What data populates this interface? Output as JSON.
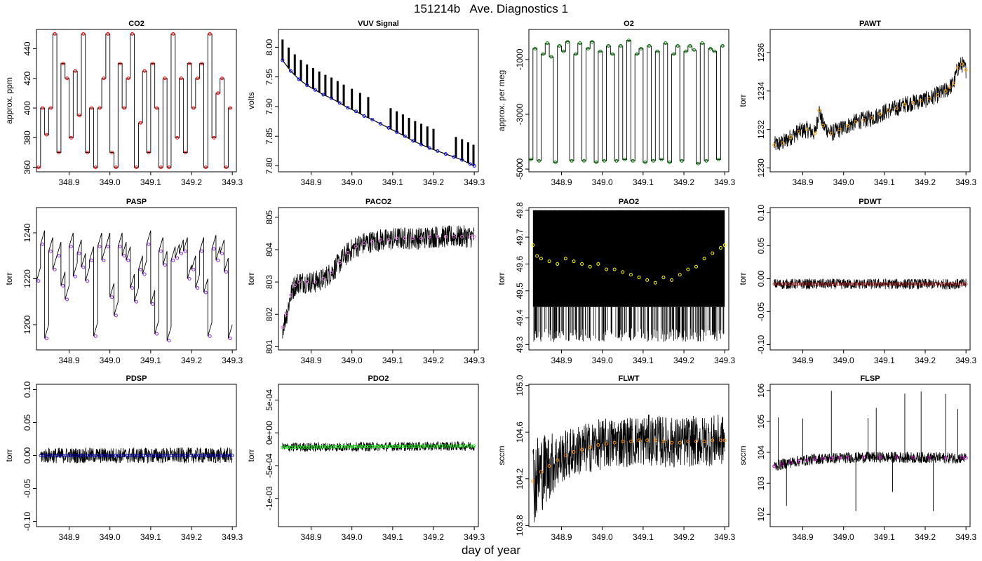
{
  "figure": {
    "title": "151214b   Ave. Diagnostics 1",
    "xlabel": "day of year"
  },
  "chart_data": [
    {
      "type": "line",
      "title": "CO2",
      "ylabel": "approx. ppm",
      "xlim": [
        348.82,
        349.31
      ],
      "ylim": [
        357,
        453
      ],
      "xticks": [
        "348.9",
        "349.0",
        "349.1",
        "349.2",
        "349.3"
      ],
      "yticks": [
        "360",
        "380",
        "400",
        "420",
        "440"
      ],
      "series": [
        {
          "color": "#ff0000",
          "raw": "#000000",
          "x": [
            348.825,
            348.835,
            348.845,
            348.855,
            348.865,
            348.875,
            348.885,
            348.895,
            348.905,
            348.915,
            348.925,
            348.935,
            348.945,
            348.955,
            348.965,
            348.975,
            348.985,
            348.995,
            349.005,
            349.015,
            349.025,
            349.035,
            349.045,
            349.055,
            349.065,
            349.075,
            349.085,
            349.095,
            349.105,
            349.115,
            349.125,
            349.135,
            349.145,
            349.155,
            349.165,
            349.175,
            349.185,
            349.195,
            349.205,
            349.215,
            349.225,
            349.235,
            349.245,
            349.255,
            349.265,
            349.275,
            349.285,
            349.295
          ],
          "y": [
            360,
            400,
            382,
            400,
            450,
            370,
            430,
            420,
            380,
            425,
            395,
            450,
            370,
            400,
            360,
            400,
            420,
            450,
            370,
            360,
            430,
            400,
            420,
            450,
            360,
            390,
            425,
            370,
            430,
            400,
            360,
            420,
            360,
            450,
            380,
            420,
            370,
            430,
            400,
            420,
            430,
            360,
            450,
            380,
            410,
            420,
            360,
            400
          ]
        }
      ]
    },
    {
      "type": "line",
      "title": "VUV Signal",
      "ylabel": "volts",
      "xlim": [
        348.82,
        349.31
      ],
      "ylim": [
        7.79,
        8.03
      ],
      "xticks": [
        "348.9",
        "349.0",
        "349.1",
        "349.2",
        "349.3"
      ],
      "yticks": [
        "7.80",
        "7.85",
        "7.90",
        "7.95",
        "8.00"
      ],
      "series": [
        {
          "color": "#0000ff",
          "raw": "#000000",
          "x": [
            348.83,
            348.85,
            348.87,
            348.89,
            348.91,
            348.93,
            348.95,
            348.97,
            348.99,
            349.01,
            349.03,
            349.05,
            349.07,
            349.09,
            349.11,
            349.13,
            349.15,
            349.17,
            349.19,
            349.21,
            349.23,
            349.25,
            349.27,
            349.29,
            349.3
          ],
          "y": [
            7.978,
            7.96,
            7.946,
            7.936,
            7.928,
            7.92,
            7.914,
            7.906,
            7.898,
            7.892,
            7.884,
            7.878,
            7.871,
            7.864,
            7.857,
            7.85,
            7.842,
            7.836,
            7.83,
            7.825,
            7.82,
            7.815,
            7.81,
            7.803,
            7.8
          ]
        }
      ]
    },
    {
      "type": "line",
      "title": "O2",
      "ylabel": "approx. per meg",
      "xlim": [
        348.82,
        349.31
      ],
      "ylim": [
        -5100,
        100
      ],
      "xticks": [
        "348.9",
        "349.0",
        "349.1",
        "349.2",
        "349.3"
      ],
      "yticks": [
        "-5000",
        "-3000",
        "-1000"
      ],
      "series": [
        {
          "color": "#008000",
          "raw": "#000000",
          "x": [
            348.825,
            348.835,
            348.845,
            348.855,
            348.865,
            348.875,
            348.885,
            348.895,
            348.905,
            348.915,
            348.925,
            348.935,
            348.945,
            348.955,
            348.965,
            348.975,
            348.985,
            348.995,
            349.005,
            349.015,
            349.025,
            349.035,
            349.045,
            349.055,
            349.065,
            349.075,
            349.085,
            349.095,
            349.105,
            349.115,
            349.125,
            349.135,
            349.145,
            349.155,
            349.165,
            349.175,
            349.185,
            349.195,
            349.205,
            349.215,
            349.225,
            349.235,
            349.245,
            349.255,
            349.265,
            349.275,
            349.285,
            349.295
          ],
          "y": [
            -4650,
            -600,
            -4700,
            -800,
            -400,
            -900,
            -4750,
            -500,
            -700,
            -350,
            -4700,
            -800,
            -400,
            -4700,
            -600,
            -350,
            -4750,
            -700,
            -4700,
            -500,
            -800,
            -4700,
            -500,
            -4650,
            -300,
            -4700,
            -800,
            -600,
            -4750,
            -500,
            -4700,
            -700,
            -4650,
            -400,
            -4750,
            -800,
            -500,
            -4700,
            -700,
            -500,
            -650,
            -4800,
            -400,
            -4700,
            -600,
            -700,
            -4650,
            -500
          ]
        }
      ]
    },
    {
      "type": "line",
      "title": "PAWT",
      "ylabel": "torr",
      "xlim": [
        348.82,
        349.31
      ],
      "ylim": [
        1229.8,
        1237.2
      ],
      "xticks": [
        "348.9",
        "349.0",
        "349.1",
        "349.2",
        "349.3"
      ],
      "yticks": [
        "1230",
        "1232",
        "1234",
        "1236"
      ],
      "series": [
        {
          "color": "#ffa500",
          "raw": "#000000",
          "x": [
            348.83,
            348.85,
            348.87,
            348.89,
            348.91,
            348.93,
            348.94,
            348.95,
            348.97,
            348.99,
            349.01,
            349.03,
            349.05,
            349.07,
            349.09,
            349.11,
            349.13,
            349.15,
            349.17,
            349.19,
            349.21,
            349.23,
            349.25,
            349.26,
            349.27,
            349.28,
            349.29,
            349.3
          ],
          "y": [
            1231.2,
            1231.3,
            1231.6,
            1231.9,
            1232.0,
            1231.8,
            1233.0,
            1232.2,
            1231.8,
            1232.0,
            1232.2,
            1232.4,
            1232.5,
            1232.6,
            1232.8,
            1233.0,
            1233.1,
            1233.3,
            1233.4,
            1233.5,
            1233.6,
            1233.8,
            1234.0,
            1234.2,
            1234.4,
            1235.2,
            1235.4,
            1235.1
          ]
        }
      ]
    },
    {
      "type": "line",
      "title": "PASP",
      "ylabel": "torr",
      "xlim": [
        348.82,
        349.31
      ],
      "ylim": [
        1189,
        1251
      ],
      "xticks": [
        "348.9",
        "349.0",
        "349.1",
        "349.2",
        "349.3"
      ],
      "yticks": [
        "1200",
        "1220",
        "1240"
      ],
      "series": [
        {
          "color": "#8a2be2",
          "raw": "#000000",
          "x": [
            348.825,
            348.835,
            348.845,
            348.855,
            348.865,
            348.875,
            348.885,
            348.895,
            348.905,
            348.915,
            348.925,
            348.935,
            348.945,
            348.955,
            348.965,
            348.975,
            348.985,
            348.995,
            349.005,
            349.015,
            349.025,
            349.035,
            349.045,
            349.055,
            349.065,
            349.075,
            349.085,
            349.095,
            349.105,
            349.115,
            349.125,
            349.135,
            349.145,
            349.155,
            349.165,
            349.175,
            349.185,
            349.195,
            349.205,
            349.215,
            349.225,
            349.235,
            349.245,
            349.255,
            349.265,
            349.275,
            349.285,
            349.295
          ],
          "y": [
            1219,
            1235,
            1194,
            1232,
            1224,
            1230,
            1217,
            1211,
            1234,
            1221,
            1231,
            1225,
            1219,
            1228,
            1195,
            1234,
            1228,
            1234,
            1212,
            1204,
            1234,
            1230,
            1228,
            1216,
            1210,
            1224,
            1222,
            1235,
            1209,
            1196,
            1232,
            1226,
            1193,
            1228,
            1229,
            1231,
            1232,
            1220,
            1224,
            1216,
            1232,
            1214,
            1195,
            1233,
            1228,
            1231,
            1223,
            1194
          ]
        }
      ]
    },
    {
      "type": "line",
      "title": "PACO2",
      "ylabel": "torr",
      "xlim": [
        348.82,
        349.31
      ],
      "ylim": [
        800.9,
        805.3
      ],
      "xticks": [
        "348.9",
        "349.0",
        "349.1",
        "349.2",
        "349.3"
      ],
      "yticks": [
        "801",
        "802",
        "803",
        "804",
        "805"
      ],
      "series": [
        {
          "color": "#ee82ee",
          "raw": "#000000",
          "x": [
            348.83,
            348.84,
            348.85,
            348.86,
            348.87,
            348.89,
            348.91,
            348.93,
            348.95,
            348.97,
            348.99,
            349.01,
            349.03,
            349.05,
            349.07,
            349.09,
            349.11,
            349.13,
            349.15,
            349.17,
            349.19,
            349.21,
            349.23,
            349.25,
            349.27,
            349.29,
            349.3
          ],
          "y": [
            801.6,
            802.0,
            802.6,
            802.9,
            803.0,
            803.0,
            803.0,
            803.1,
            803.3,
            803.6,
            803.9,
            804.1,
            804.2,
            804.25,
            804.3,
            804.3,
            804.35,
            804.35,
            804.35,
            804.35,
            804.4,
            804.4,
            804.4,
            804.4,
            804.4,
            804.4,
            804.4
          ]
        }
      ]
    },
    {
      "type": "scatter",
      "title": "PAO2",
      "ylabel": "torr",
      "xlim": [
        348.82,
        349.31
      ],
      "ylim": [
        49.28,
        49.81
      ],
      "xticks": [
        "348.9",
        "349.0",
        "349.1",
        "349.2",
        "349.3"
      ],
      "yticks": [
        "49.3",
        "49.4",
        "49.5",
        "49.6",
        "49.7",
        "49.8"
      ],
      "series": [
        {
          "color": "#ffff00",
          "raw": "#000000",
          "x": [
            348.83,
            348.84,
            348.85,
            348.87,
            348.89,
            348.91,
            348.93,
            348.95,
            348.97,
            348.99,
            349.01,
            349.03,
            349.05,
            349.07,
            349.09,
            349.11,
            349.13,
            349.15,
            349.17,
            349.19,
            349.21,
            349.23,
            349.25,
            349.27,
            349.29,
            349.3
          ],
          "y": [
            49.67,
            49.63,
            49.62,
            49.61,
            49.6,
            49.62,
            49.61,
            49.6,
            49.59,
            49.6,
            49.58,
            49.58,
            49.57,
            49.56,
            49.55,
            49.54,
            49.53,
            49.55,
            49.54,
            49.56,
            49.58,
            49.59,
            49.62,
            49.64,
            49.66,
            49.67
          ]
        }
      ]
    },
    {
      "type": "line",
      "title": "PDWT",
      "ylabel": "torr",
      "xlim": [
        348.82,
        349.31
      ],
      "ylim": [
        -0.108,
        0.108
      ],
      "xticks": [
        "348.9",
        "349.0",
        "349.1",
        "349.2",
        "349.3"
      ],
      "yticks": [
        "-0.10",
        "-0.05",
        "0.00",
        "0.05",
        "0.10"
      ],
      "series": [
        {
          "color": "#b22222",
          "raw": "#000000",
          "x": [
            348.83,
            349.3
          ],
          "y": [
            -0.008,
            -0.008
          ]
        }
      ]
    },
    {
      "type": "line",
      "title": "PDSP",
      "ylabel": "torr",
      "xlim": [
        348.82,
        349.31
      ],
      "ylim": [
        -0.108,
        0.108
      ],
      "xticks": [
        "348.9",
        "349.0",
        "349.1",
        "349.2",
        "349.3"
      ],
      "yticks": [
        "-0.10",
        "-0.05",
        "0.00",
        "0.05",
        "0.10"
      ],
      "series": [
        {
          "color": "#0000cd",
          "raw": "#000000",
          "x": [
            348.83,
            349.3
          ],
          "y": [
            0.0,
            0.0
          ]
        }
      ]
    },
    {
      "type": "line",
      "title": "PDO2",
      "ylabel": "torr",
      "xlim": [
        348.82,
        349.31
      ],
      "ylim": [
        -0.00143,
        0.00074
      ],
      "xticks": [
        "348.9",
        "349.0",
        "349.1",
        "349.2",
        "349.3"
      ],
      "yticks": [
        "-1e-03",
        "-5e-04",
        "0e+00",
        "5e-04"
      ],
      "series": [
        {
          "color": "#00ff00",
          "raw": "#000000",
          "x": [
            348.83,
            349.3
          ],
          "y": [
            -0.00022,
            -0.0002
          ]
        }
      ]
    },
    {
      "type": "line",
      "title": "FLWT",
      "ylabel": "sccm",
      "xlim": [
        348.82,
        349.31
      ],
      "ylim": [
        103.79,
        105.01
      ],
      "xticks": [
        "348.9",
        "349.0",
        "349.1",
        "349.2",
        "349.3"
      ],
      "yticks": [
        "103.8",
        "104.2",
        "104.6",
        "105.0"
      ],
      "series": [
        {
          "color": "#ff8c00",
          "raw": "#000000",
          "x": [
            348.83,
            348.85,
            348.87,
            348.89,
            348.91,
            348.93,
            348.95,
            348.97,
            348.99,
            349.01,
            349.03,
            349.05,
            349.07,
            349.09,
            349.11,
            349.13,
            349.15,
            349.17,
            349.19,
            349.21,
            349.23,
            349.25,
            349.27,
            349.29,
            349.3
          ],
          "y": [
            104.18,
            104.26,
            104.31,
            104.36,
            104.4,
            104.43,
            104.45,
            104.47,
            104.49,
            104.5,
            104.51,
            104.52,
            104.52,
            104.53,
            104.53,
            104.53,
            104.52,
            104.51,
            104.51,
            104.52,
            104.52,
            104.52,
            104.53,
            104.53,
            104.53
          ]
        }
      ]
    },
    {
      "type": "line",
      "title": "FLSP",
      "ylabel": "sccm",
      "xlim": [
        348.82,
        349.31
      ],
      "ylim": [
        101.6,
        106.2
      ],
      "xticks": [
        "348.9",
        "349.0",
        "349.1",
        "349.2",
        "349.3"
      ],
      "yticks": [
        "102",
        "103",
        "104",
        "105",
        "106"
      ],
      "series": [
        {
          "color": "#c000c0",
          "raw": "#000000",
          "x": [
            348.83,
            348.85,
            348.87,
            348.89,
            348.91,
            348.93,
            348.95,
            348.97,
            348.99,
            349.01,
            349.05,
            349.09,
            349.13,
            349.17,
            349.21,
            349.25,
            349.29,
            349.3
          ],
          "y": [
            103.55,
            103.62,
            103.68,
            103.72,
            103.75,
            103.78,
            103.8,
            103.81,
            103.82,
            103.83,
            103.84,
            103.84,
            103.84,
            103.83,
            103.83,
            103.82,
            103.82,
            103.82
          ]
        }
      ]
    }
  ]
}
